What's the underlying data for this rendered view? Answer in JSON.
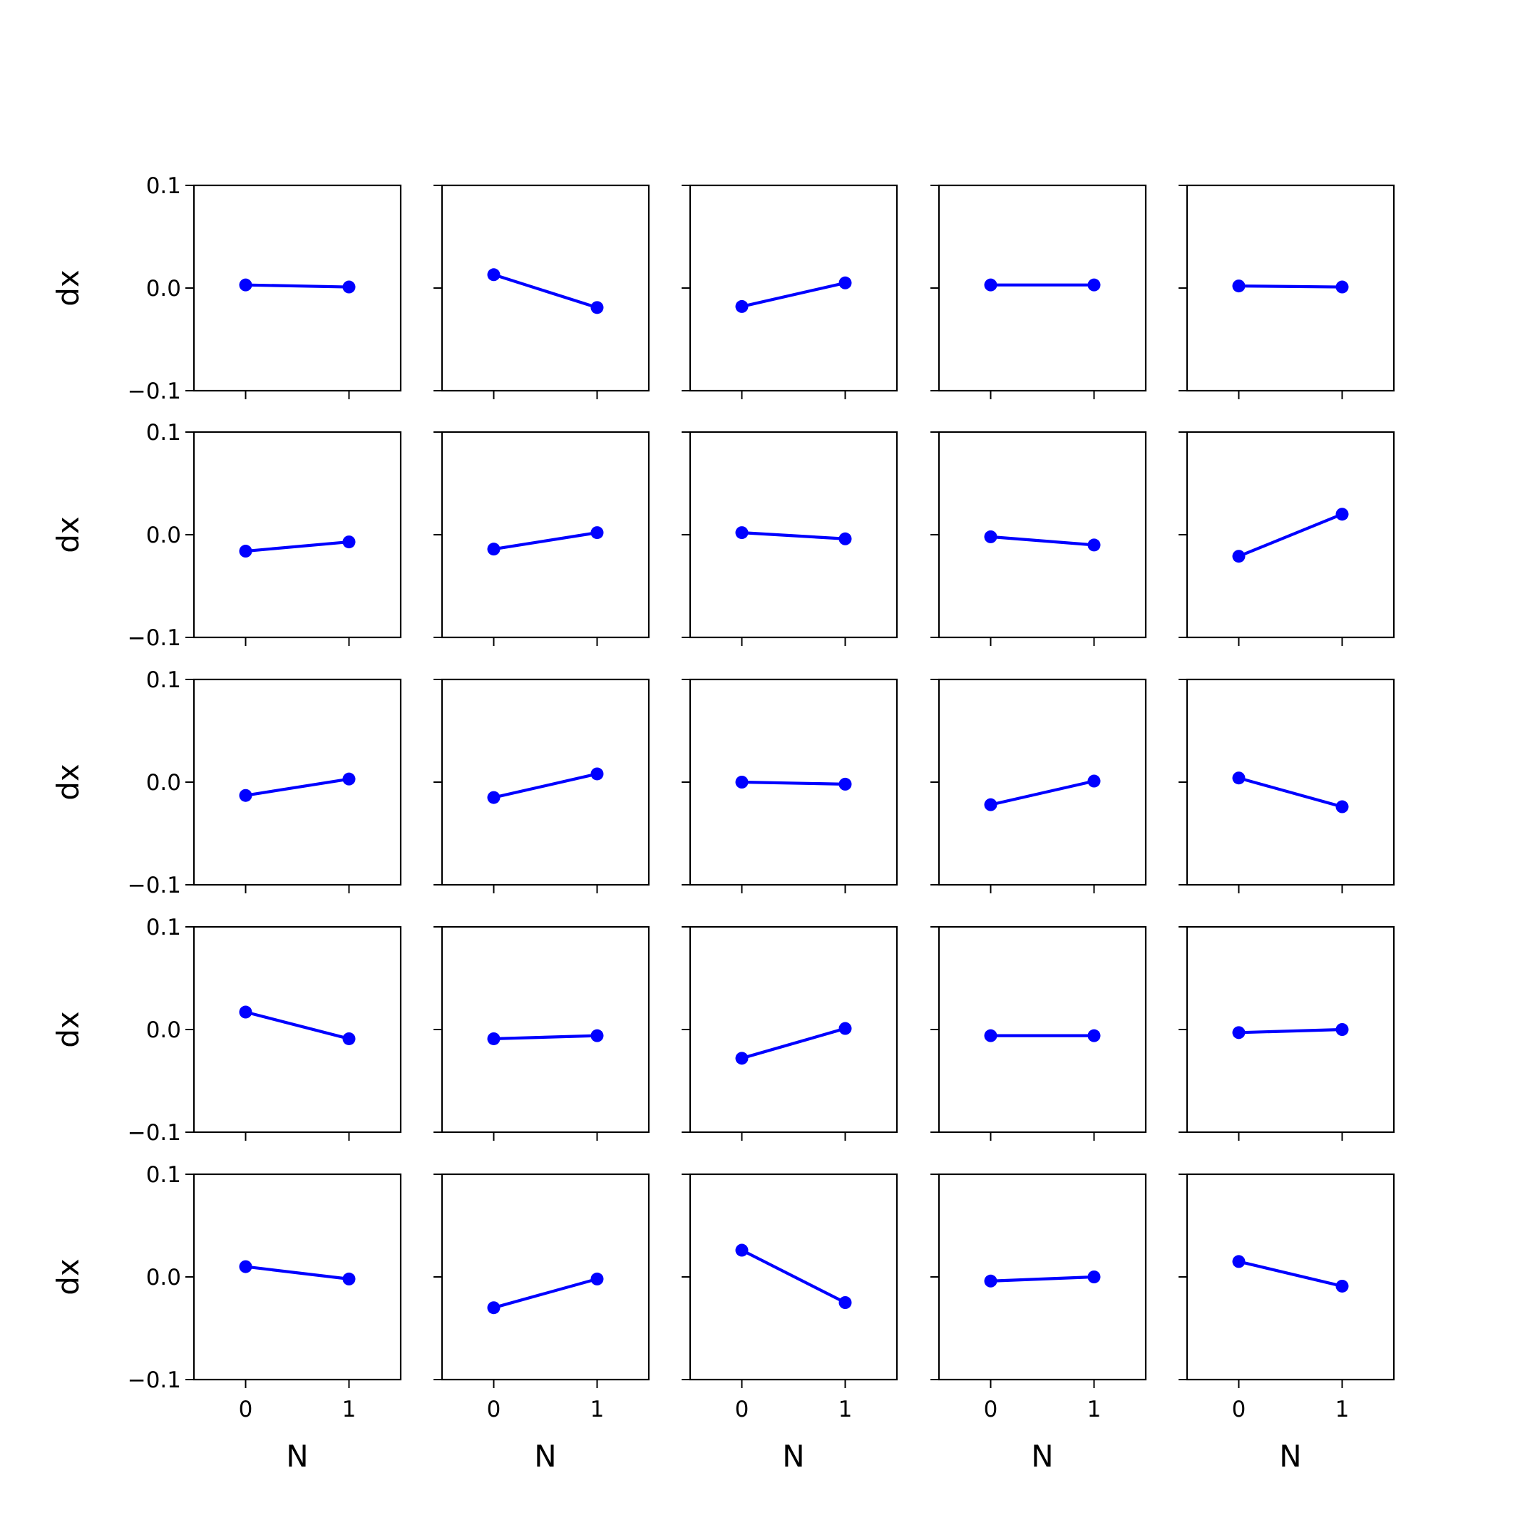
{
  "chart_data": {
    "type": "line",
    "layout": "5x5 grid of subplots",
    "xlabel": "N",
    "ylabel": "dx",
    "x_ticks": [
      0,
      1
    ],
    "xlim": [
      -0.5,
      1.5
    ],
    "y_ticks": [
      -0.1,
      0.0,
      0.1
    ],
    "y_tick_labels": [
      "−0.1",
      "0.0",
      "0.1"
    ],
    "ylim": [
      -0.1,
      0.1
    ],
    "grid": false,
    "line_color": "#0000ff",
    "marker": "circle",
    "panels": [
      {
        "x": [
          0,
          1
        ],
        "y": [
          0.003,
          0.001
        ]
      },
      {
        "x": [
          0,
          1
        ],
        "y": [
          0.013,
          -0.019
        ]
      },
      {
        "x": [
          0,
          1
        ],
        "y": [
          -0.018,
          0.005
        ]
      },
      {
        "x": [
          0,
          1
        ],
        "y": [
          0.003,
          0.003
        ]
      },
      {
        "x": [
          0,
          1
        ],
        "y": [
          0.002,
          0.001
        ]
      },
      {
        "x": [
          0,
          1
        ],
        "y": [
          -0.016,
          -0.007
        ]
      },
      {
        "x": [
          0,
          1
        ],
        "y": [
          -0.014,
          0.002
        ]
      },
      {
        "x": [
          0,
          1
        ],
        "y": [
          0.002,
          -0.004
        ]
      },
      {
        "x": [
          0,
          1
        ],
        "y": [
          -0.002,
          -0.01
        ]
      },
      {
        "x": [
          0,
          1
        ],
        "y": [
          -0.021,
          0.02
        ]
      },
      {
        "x": [
          0,
          1
        ],
        "y": [
          -0.013,
          0.003
        ]
      },
      {
        "x": [
          0,
          1
        ],
        "y": [
          -0.015,
          0.008
        ]
      },
      {
        "x": [
          0,
          1
        ],
        "y": [
          0.0,
          -0.002
        ]
      },
      {
        "x": [
          0,
          1
        ],
        "y": [
          -0.022,
          0.001
        ]
      },
      {
        "x": [
          0,
          1
        ],
        "y": [
          0.004,
          -0.024
        ]
      },
      {
        "x": [
          0,
          1
        ],
        "y": [
          0.017,
          -0.009
        ]
      },
      {
        "x": [
          0,
          1
        ],
        "y": [
          -0.009,
          -0.006
        ]
      },
      {
        "x": [
          0,
          1
        ],
        "y": [
          -0.028,
          0.001
        ]
      },
      {
        "x": [
          0,
          1
        ],
        "y": [
          -0.006,
          -0.006
        ]
      },
      {
        "x": [
          0,
          1
        ],
        "y": [
          -0.003,
          0.0
        ]
      },
      {
        "x": [
          0,
          1
        ],
        "y": [
          0.01,
          -0.002
        ]
      },
      {
        "x": [
          0,
          1
        ],
        "y": [
          -0.03,
          -0.002
        ]
      },
      {
        "x": [
          0,
          1
        ],
        "y": [
          0.026,
          -0.025
        ]
      },
      {
        "x": [
          0,
          1
        ],
        "y": [
          -0.004,
          0.0
        ]
      },
      {
        "x": [
          0,
          1
        ],
        "y": [
          0.015,
          -0.009
        ]
      }
    ]
  }
}
